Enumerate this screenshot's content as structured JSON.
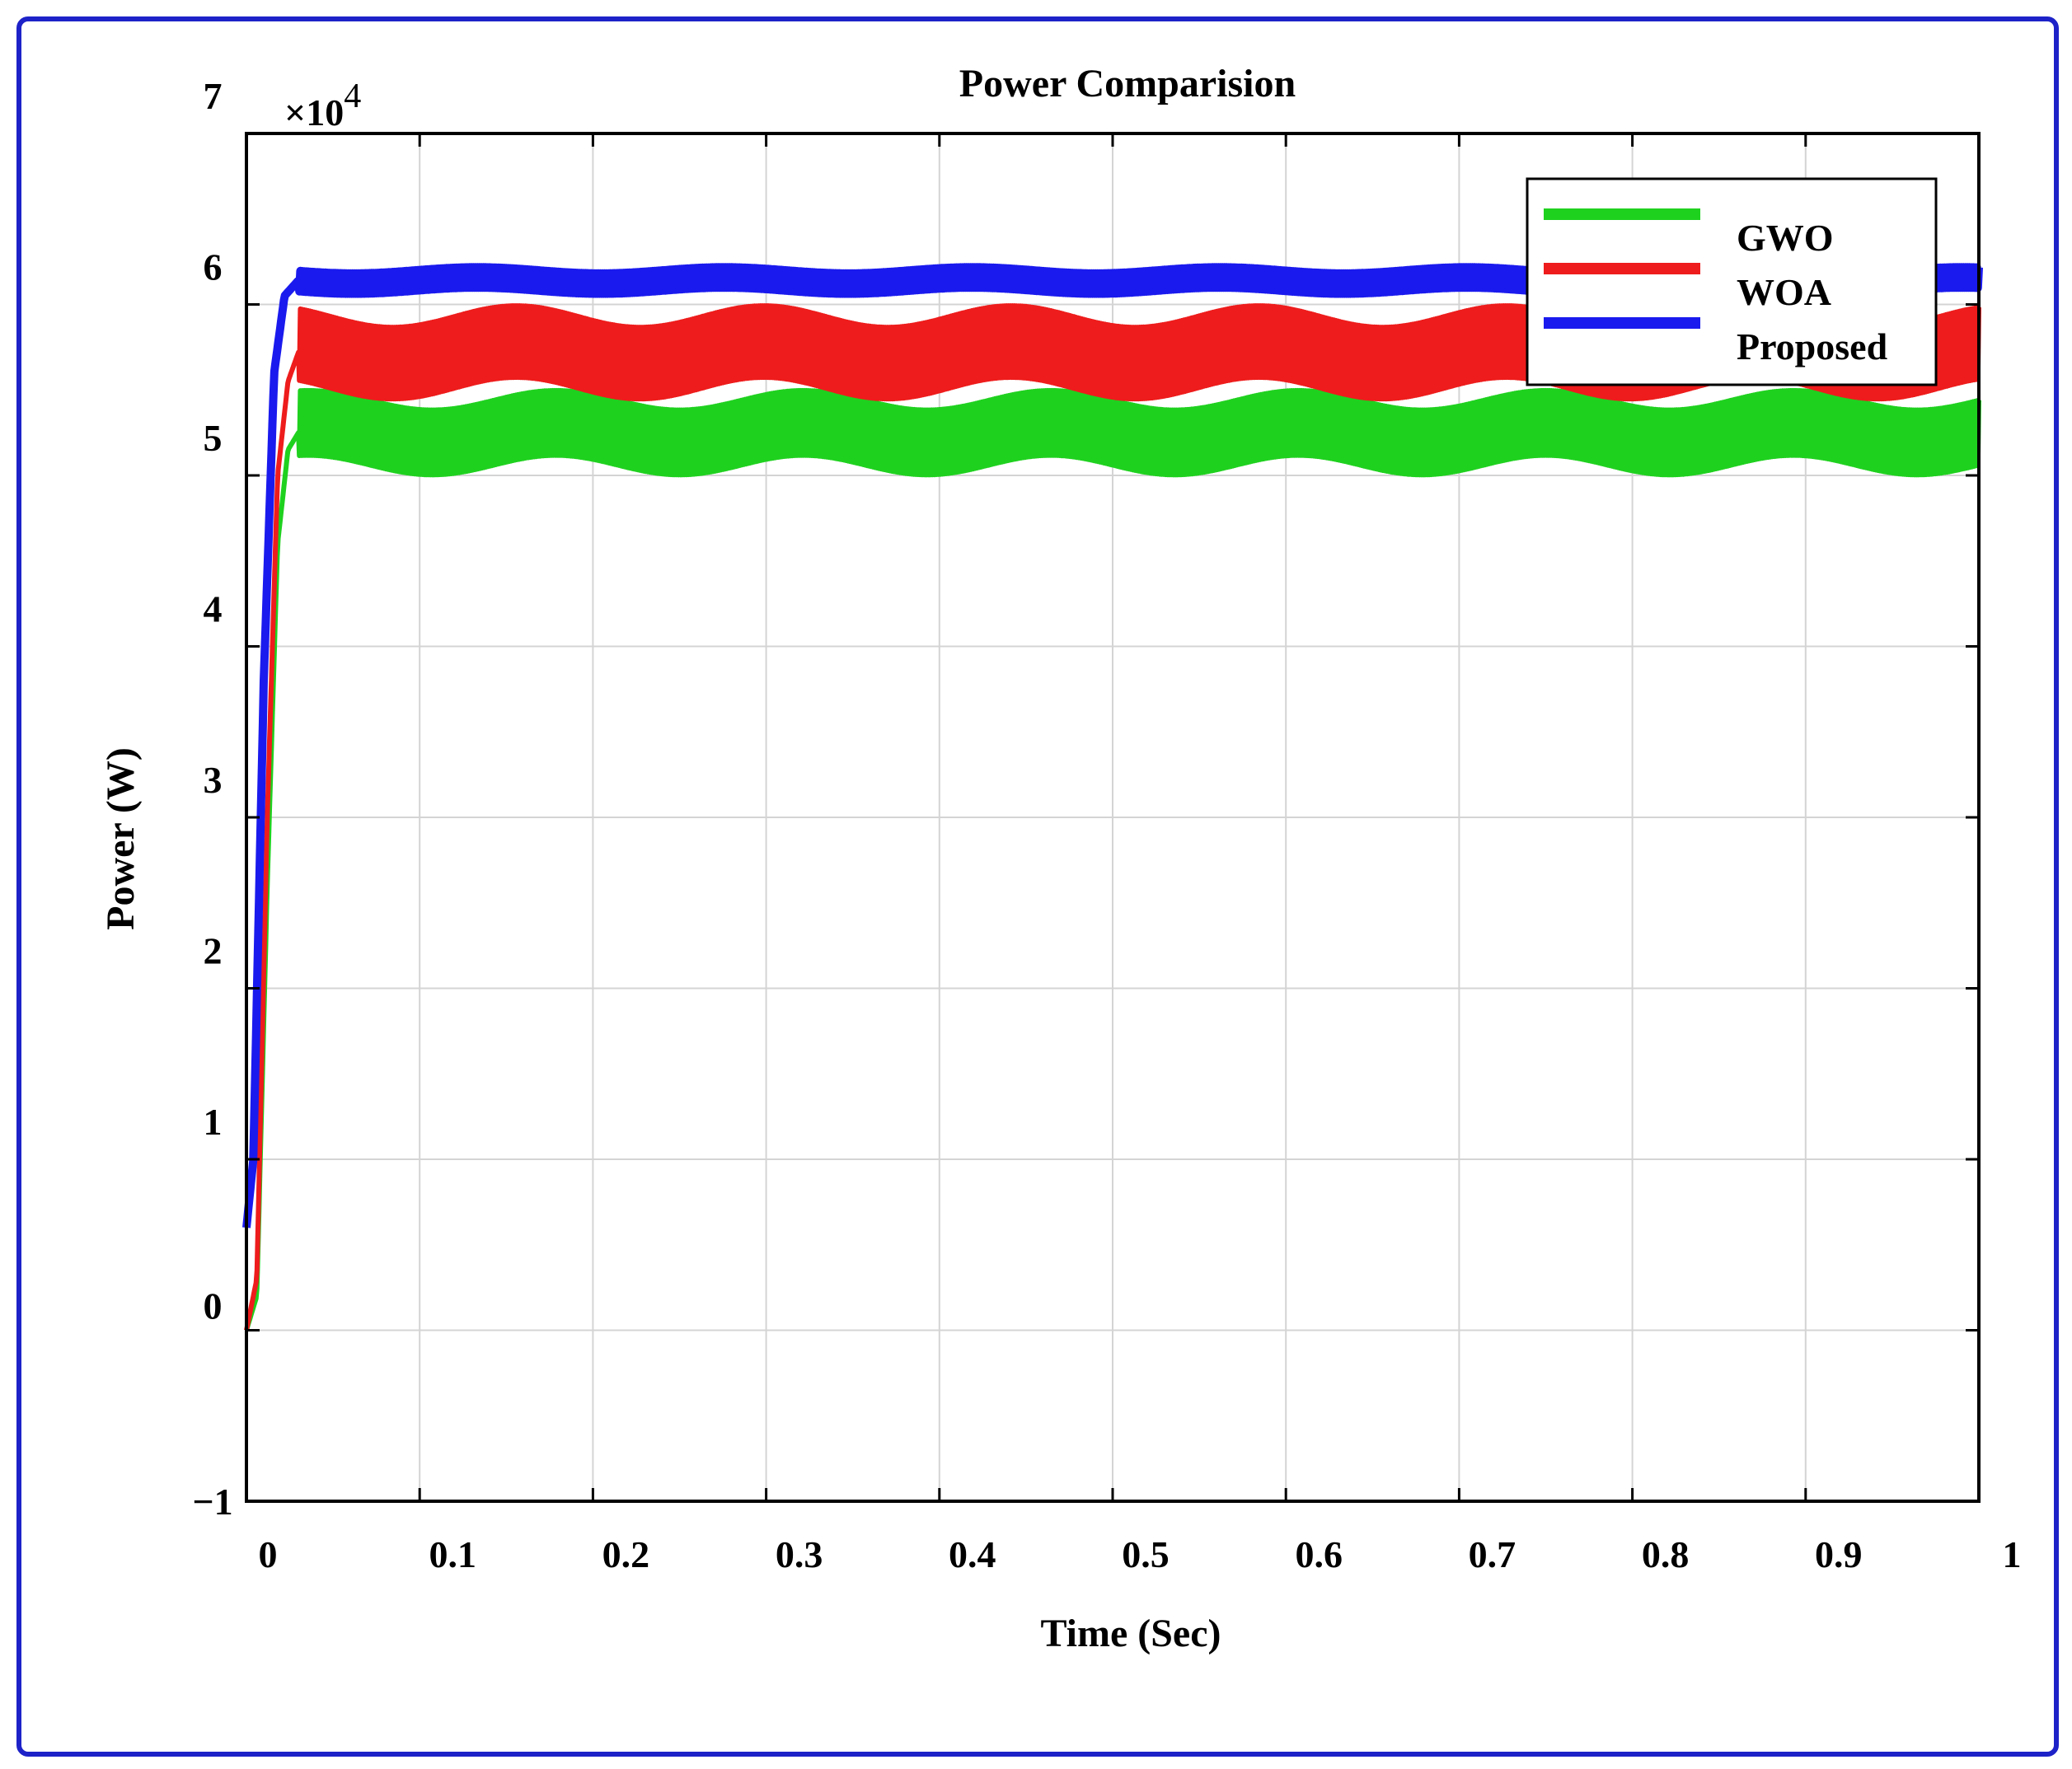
{
  "chart_data": {
    "type": "line",
    "title": "Power Comparision",
    "xlabel": "Time (Sec)",
    "ylabel": "Power (W)",
    "y_multiplier": "×10",
    "y_multiplier_exponent": "4",
    "xlim": [
      0,
      1
    ],
    "ylim": [
      -1,
      7
    ],
    "x_ticks": [
      0,
      0.1,
      0.2,
      0.3,
      0.4,
      0.5,
      0.6,
      0.7,
      0.8,
      0.9,
      1
    ],
    "x_tick_labels": [
      "0",
      "0.1",
      "0.2",
      "0.3",
      "0.4",
      "0.5",
      "0.6",
      "0.7",
      "0.8",
      "0.9",
      "1"
    ],
    "y_ticks": [
      -1,
      0,
      1,
      2,
      3,
      4,
      5,
      6,
      7
    ],
    "y_tick_labels": [
      "−1",
      "0",
      "1",
      "2",
      "3",
      "4",
      "5",
      "6",
      "7"
    ],
    "grid": true,
    "legend_position": "top-right",
    "series": [
      {
        "name": "GWO",
        "color": "#1fd11f",
        "x": [
          0,
          0.006,
          0.012,
          0.018,
          0.024,
          0.03,
          0.05,
          0.1,
          0.2,
          0.3,
          0.4,
          0.5,
          0.6,
          0.7,
          0.8,
          0.9,
          1
        ],
        "y": [
          0,
          0.2,
          2.6,
          4.6,
          5.15,
          5.25,
          5.25,
          5.25,
          5.25,
          5.25,
          5.25,
          5.25,
          5.25,
          5.25,
          5.25,
          5.25,
          5.25
        ],
        "ripple": 0.38
      },
      {
        "name": "WOA",
        "color": "#ee1c1c",
        "x": [
          0,
          0.006,
          0.012,
          0.018,
          0.024,
          0.03,
          0.05,
          0.1,
          0.2,
          0.3,
          0.4,
          0.5,
          0.6,
          0.7,
          0.8,
          0.9,
          1
        ],
        "y": [
          0,
          0.3,
          3.0,
          5.0,
          5.55,
          5.72,
          5.72,
          5.72,
          5.72,
          5.72,
          5.72,
          5.72,
          5.72,
          5.72,
          5.72,
          5.72,
          5.72
        ],
        "ripple": 0.42
      },
      {
        "name": "Proposed",
        "color": "#1a1aee",
        "x": [
          0,
          0.004,
          0.01,
          0.016,
          0.022,
          0.03,
          0.05,
          0.1,
          0.2,
          0.3,
          0.4,
          0.5,
          0.6,
          0.7,
          0.8,
          0.9,
          1
        ],
        "y": [
          0.6,
          1.0,
          3.8,
          5.6,
          6.05,
          6.14,
          6.14,
          6.14,
          6.14,
          6.14,
          6.14,
          6.14,
          6.14,
          6.14,
          6.14,
          6.14,
          6.14
        ],
        "ripple": 0.12
      }
    ]
  }
}
